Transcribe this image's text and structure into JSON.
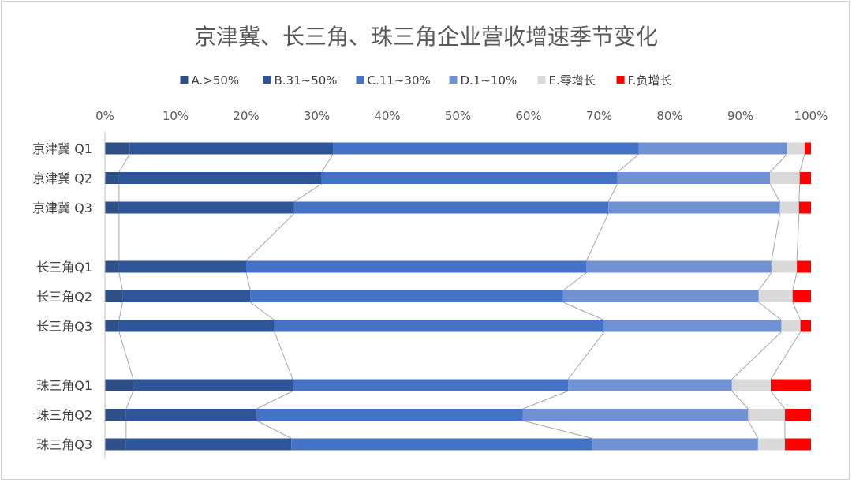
{
  "chart_data": {
    "type": "bar",
    "orientation": "horizontal",
    "stacked": "percent",
    "title": "京津冀、长三角、珠三角企业营收增速季节变化",
    "xlabel": "",
    "ylabel": "",
    "xlim": [
      0,
      100
    ],
    "x_ticks": [
      "0%",
      "10%",
      "20%",
      "30%",
      "40%",
      "50%",
      "60%",
      "70%",
      "80%",
      "90%",
      "100%"
    ],
    "legend_position": "top",
    "grid": false,
    "series_lines": true,
    "groups": [
      {
        "categories": [
          "京津冀 Q1",
          "京津冀 Q2",
          "京津冀 Q3"
        ]
      },
      {
        "categories": [
          "长三角Q1",
          "长三角Q2",
          "长三角Q3"
        ]
      },
      {
        "categories": [
          "珠三角Q1",
          "珠三角Q2",
          "珠三角Q3"
        ]
      }
    ],
    "categories": [
      "京津冀 Q1",
      "京津冀 Q2",
      "京津冀 Q3",
      "长三角Q1",
      "长三角Q2",
      "长三角Q3",
      "珠三角Q1",
      "珠三角Q2",
      "珠三角Q3"
    ],
    "series": [
      {
        "name": "A.>50%",
        "color": "#2f4f87",
        "values": [
          3.5,
          2.0,
          2.0,
          2.0,
          2.5,
          2.0,
          4.0,
          3.0,
          3.0
        ]
      },
      {
        "name": "B.31~50%",
        "color": "#2e5598",
        "values": [
          28.8,
          28.7,
          24.8,
          18.0,
          18.1,
          22.0,
          22.6,
          18.5,
          23.4
        ]
      },
      {
        "name": "C.11~30%",
        "color": "#4472c4",
        "values": [
          43.3,
          41.9,
          44.5,
          48.2,
          44.3,
          46.7,
          39.0,
          37.7,
          42.6
        ]
      },
      {
        "name": "D.1~10%",
        "color": "#7092d2",
        "values": [
          21.0,
          21.6,
          24.3,
          26.2,
          27.7,
          25.1,
          23.2,
          31.9,
          23.5
        ]
      },
      {
        "name": "E.零增长",
        "color": "#d9d9d9",
        "values": [
          2.5,
          4.2,
          2.7,
          3.6,
          4.8,
          2.7,
          5.5,
          5.2,
          3.8
        ]
      },
      {
        "name": "F.负增长",
        "color": "#ff0000",
        "values": [
          0.9,
          1.6,
          1.7,
          2.0,
          2.6,
          1.5,
          5.7,
          3.7,
          3.7
        ]
      }
    ]
  }
}
